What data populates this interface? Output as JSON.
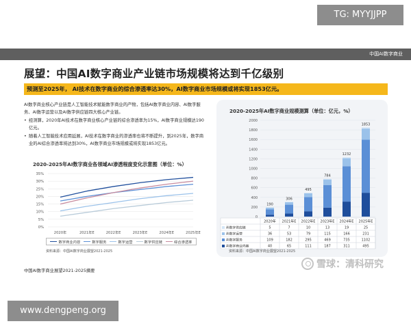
{
  "watermark_top": "TG: MYYJJPP",
  "watermark_bottom": "www.dengpeng.org",
  "header_label": "中国AI数字商业",
  "title": "展望：中国AI数字商业产业链市场规模将达到千亿级别",
  "banner": "预测至2025年， AI技术在数字商业的综合渗透率达30%，AI数字商业市场规模或将实现1853亿元。",
  "paragraphs": {
    "intro": "AI数字商业核心产业链是人工智能技术赋能数字商业的产物，包括AI数字商业内容、AI数字服务、AI数字运营以及AI数字供应链四大核心产业链。",
    "bullet1": "经测算，2020年AI技术在数字商业核心产业链的综合渗透率为15%，AI数字商业规模达190亿元。",
    "bullet2": "随着人工智能技术应用延展，AI技术在数字商业的渗透率也将不断提升，到2025年，数字商业的AI综合渗透率将达到30%，AI数字商业市场规模或将实现1853亿元。"
  },
  "line_chart_title": "2020-2025年AI数字商业各领域AI渗透程度变化示意图（单位：%）",
  "bar_chart_title": "2020-2025年AI数字商业规模测算（单位：亿元，%）",
  "source_left": "资料来源：中国AI数字商业展望2021-2025",
  "source_right": "资料来源：中国AI数字商业展望2021-2025",
  "footnote": "中国AI数字商业展望2021-2025摘要",
  "xueqiu": "雪球：清科研究",
  "colors": {
    "banner": "#f5b71b",
    "header": "#5f5f5f",
    "content": "#1f4e9c",
    "service": "#5b8fd6",
    "operation": "#9bc2ea",
    "supply": "#d3e5f6",
    "overall": "#c78a9d"
  },
  "chart_data": [
    {
      "type": "bar",
      "title": "2020-2025年AI数字商业规模测算（单位：亿元，%）",
      "categories": [
        "2020年",
        "2021年E",
        "2022年E",
        "2023年E",
        "2024年E",
        "2025年E"
      ],
      "ylim": [
        0,
        2000
      ],
      "yticks": [
        0,
        200,
        400,
        600,
        800,
        1000,
        1200,
        1400,
        1600,
        1800,
        2000
      ],
      "stacked": true,
      "totals": [
        190,
        306,
        495,
        784,
        1232,
        1853
      ],
      "series": [
        {
          "name": "AI数字商业内容",
          "values": [
            40,
            65,
            111,
            187,
            311,
            495
          ]
        },
        {
          "name": "AI数字服务",
          "values": [
            109,
            182,
            295,
            469,
            735,
            1102
          ]
        },
        {
          "name": "AI数字运营",
          "values": [
            36,
            53,
            79,
            115,
            166,
            231
          ]
        },
        {
          "name": "AI数字供应链",
          "values": [
            5,
            7,
            10,
            13,
            19,
            25
          ]
        }
      ],
      "table_order": [
        "AI数字供应链",
        "AI数字运营",
        "AI数字服务",
        "AI数字商业内容"
      ],
      "legend": "table"
    },
    {
      "type": "line",
      "title": "2020-2025年AI数字商业各领域AI渗透程度变化示意图（单位：%）",
      "categories": [
        "2020年",
        "2021年E",
        "2022年E",
        "2023年E",
        "2024年E",
        "2025年E"
      ],
      "ylim": [
        0,
        35
      ],
      "yticks": [
        0,
        5,
        10,
        15,
        20,
        25,
        30,
        35
      ],
      "ytick_labels": [
        "0%",
        "5%",
        "10%",
        "15%",
        "20%",
        "25%",
        "30%",
        "35%"
      ],
      "grid": true,
      "legend": "bottom",
      "series": [
        {
          "name": "数字商业内容",
          "values": [
            19.5,
            23.5,
            26.5,
            29.0,
            31.0,
            32.5
          ]
        },
        {
          "name": "数字服务",
          "values": [
            17.0,
            20.0,
            22.5,
            24.5,
            26.5,
            28.0
          ]
        },
        {
          "name": "数字运营",
          "values": [
            10.5,
            13.5,
            16.0,
            18.5,
            20.5,
            22.0
          ]
        },
        {
          "name": "数字供应链",
          "values": [
            7.0,
            9.5,
            12.0,
            14.0,
            16.0,
            17.5
          ]
        },
        {
          "name": "综合渗透率",
          "values": [
            15.0,
            19.0,
            22.5,
            25.5,
            28.0,
            30.0
          ]
        }
      ]
    }
  ]
}
